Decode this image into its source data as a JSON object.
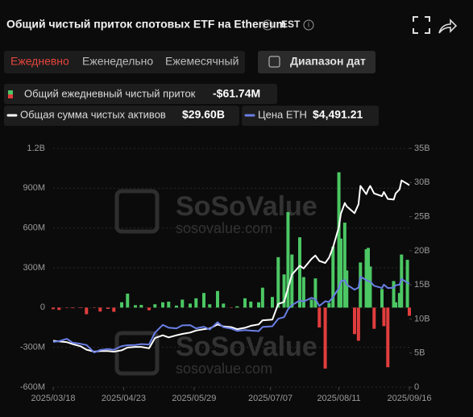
{
  "header": {
    "title": "Общий чистый приток спотовых ETF на Ethereum",
    "timezone": "EST"
  },
  "tabs": [
    "Ежедневно",
    "Еженедельно",
    "Ежемесячный"
  ],
  "date_range_button": "Диапазон дат",
  "watermark": {
    "brand": "SoSoValue",
    "site": "sosovalue.com"
  },
  "chart_data": {
    "type": "bar",
    "x": [
      "2025/03/18",
      "2025/03/21",
      "2025/03/25",
      "2025/03/28",
      "2025/04/01",
      "2025/04/04",
      "2025/04/08",
      "2025/04/11",
      "2025/04/15",
      "2025/04/18",
      "2025/04/22",
      "2025/04/25",
      "2025/04/29",
      "2025/05/02",
      "2025/05/06",
      "2025/05/09",
      "2025/05/13",
      "2025/05/16",
      "2025/05/20",
      "2025/05/23",
      "2025/05/27",
      "2025/05/30",
      "2025/06/03",
      "2025/06/06",
      "2025/06/10",
      "2025/06/13",
      "2025/06/17",
      "2025/06/20",
      "2025/06/24",
      "2025/06/27",
      "2025/07/01",
      "2025/07/03",
      "2025/07/08",
      "2025/07/11",
      "2025/07/14",
      "2025/07/16",
      "2025/07/18",
      "2025/07/22",
      "2025/07/24",
      "2025/07/28",
      "2025/07/30",
      "2025/08/01",
      "2025/08/04",
      "2025/08/06",
      "2025/08/08",
      "2025/08/11",
      "2025/08/12",
      "2025/08/14",
      "2025/08/15",
      "2025/08/19",
      "2025/08/21",
      "2025/08/22",
      "2025/08/25",
      "2025/08/26",
      "2025/08/27",
      "2025/08/29",
      "2025/09/02",
      "2025/09/03",
      "2025/09/05",
      "2025/09/08",
      "2025/09/09",
      "2025/09/11",
      "2025/09/12",
      "2025/09/15",
      "2025/09/16"
    ],
    "series": [
      {
        "name": "Общий ежедневный чистый приток",
        "type": "bar",
        "color": "#4cc764",
        "negative_color": "#e23d3d",
        "legend_value": "-$61.74M",
        "values": [
          -12,
          -18,
          -3,
          -5,
          -4,
          -50,
          -3,
          -30,
          -10,
          -32,
          40,
          105,
          18,
          20,
          -20,
          25,
          40,
          45,
          15,
          60,
          30,
          70,
          110,
          25,
          125,
          30,
          -3,
          10,
          70,
          45,
          40,
          150,
          80,
          380,
          250,
          720,
          400,
          530,
          230,
          60,
          220,
          -150,
          -460,
          35,
          460,
          1020,
          520,
          640,
          280,
          -200,
          -250,
          340,
          440,
          450,
          310,
          -160,
          140,
          -140,
          -450,
          200,
          40,
          110,
          400,
          360,
          -61.74
        ]
      },
      {
        "name": "Общая сумма чистых активов",
        "type": "line",
        "axis": "y2",
        "color": "#ffffff",
        "legend_value": "$29.60B",
        "values": [
          6.8,
          6.7,
          6.6,
          6.3,
          6.0,
          5.5,
          5.2,
          5.3,
          5.3,
          5.2,
          5.4,
          5.8,
          5.9,
          5.9,
          5.7,
          7.2,
          7.6,
          7.3,
          7.6,
          7.8,
          8.0,
          8.3,
          8.5,
          8.6,
          9.2,
          8.9,
          8.8,
          8.5,
          8.7,
          9.0,
          9.2,
          9.8,
          9.9,
          12.2,
          12.5,
          14.5,
          16.5,
          17.8,
          17.4,
          18.8,
          19.3,
          18.5,
          18.2,
          19.0,
          20.5,
          23.5,
          25.4,
          27.0,
          26.5,
          25.5,
          26.8,
          29.5,
          28.3,
          29.0,
          29.5,
          28.4,
          28.0,
          28.6,
          27.6,
          27.5,
          28.4,
          29.0,
          30.3,
          29.8,
          29.6
        ]
      },
      {
        "name": "Цена ETH",
        "type": "line",
        "axis": "hidden",
        "color": "#6a7fe6",
        "legend_value": "$4,491.21",
        "values": [
          1930,
          1970,
          2070,
          1900,
          1850,
          1800,
          1470,
          1580,
          1620,
          1590,
          1750,
          1790,
          1800,
          1840,
          1820,
          2340,
          2680,
          2560,
          2530,
          2660,
          2670,
          2530,
          2600,
          2480,
          2800,
          2580,
          2520,
          2420,
          2450,
          2430,
          2410,
          2590,
          2620,
          2950,
          3020,
          3370,
          3550,
          3750,
          3710,
          3870,
          3810,
          3510,
          3720,
          3690,
          3900,
          4300,
          4600,
          4650,
          4450,
          4230,
          4320,
          4800,
          4650,
          4600,
          4590,
          4400,
          4300,
          4450,
          4300,
          4310,
          4420,
          4450,
          4700,
          4530,
          4491.21
        ]
      }
    ],
    "xlim": [
      "2025/03/18",
      "2025/09/16"
    ],
    "xticks": [
      "2025/03/18",
      "2025/04/23",
      "2025/05/29",
      "2025/07/07",
      "2025/08/11",
      "2025/09/16"
    ],
    "ylim": [
      -600,
      1200
    ],
    "yticks": [
      {
        "value": -600,
        "label": "-600M"
      },
      {
        "value": -300,
        "label": "-300M"
      },
      0,
      {
        "value": 300,
        "label": "300M"
      },
      {
        "value": 600,
        "label": "600M"
      },
      {
        "value": 900,
        "label": "900M"
      },
      {
        "value": 1200,
        "label": "1.2B"
      }
    ],
    "y2lim": [
      0,
      35
    ],
    "y2ticks": [
      0,
      {
        "value": 5,
        "label": "5B"
      },
      {
        "value": 10,
        "label": "10B"
      },
      {
        "value": 15,
        "label": "15B"
      },
      {
        "value": 20,
        "label": "20B"
      },
      {
        "value": 25,
        "label": "25B"
      },
      {
        "value": 30,
        "label": "30B"
      },
      {
        "value": 35,
        "label": "35B"
      }
    ],
    "grid": true
  }
}
